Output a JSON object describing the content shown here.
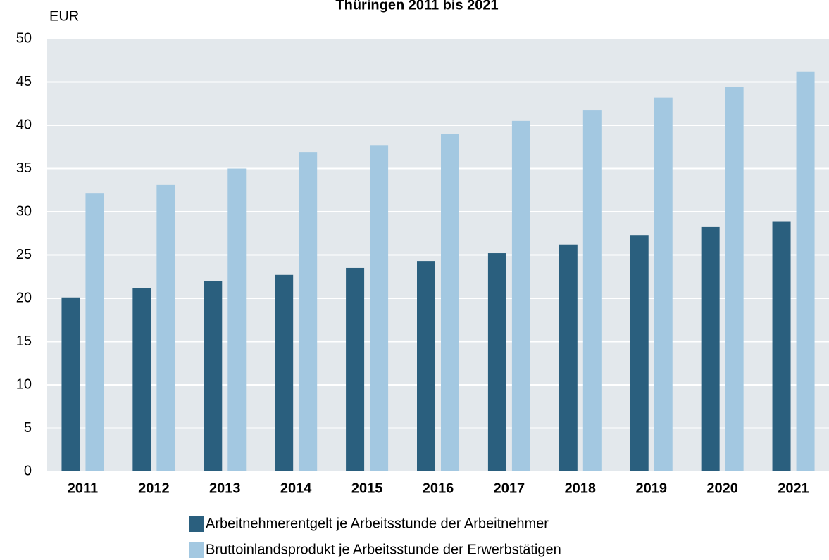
{
  "chart_data": {
    "type": "bar",
    "title": "Thüringen 2011 bis 2021",
    "y_label": "EUR",
    "categories": [
      "2011",
      "2012",
      "2013",
      "2014",
      "2015",
      "2016",
      "2017",
      "2018",
      "2019",
      "2020",
      "2021"
    ],
    "series": [
      {
        "name": "Arbeitnehmerentgelt je Arbeitsstunde der Arbeitnehmer",
        "color": "#2a5f7e",
        "values": [
          20.1,
          21.2,
          22.0,
          22.7,
          23.5,
          24.3,
          25.2,
          26.2,
          27.3,
          28.3,
          28.9
        ]
      },
      {
        "name": "Bruttoinlandsprodukt je Arbeitsstunde der Erwerbstätigen",
        "color": "#a3c8e1",
        "values": [
          32.1,
          33.1,
          35.0,
          36.9,
          37.7,
          39.0,
          40.5,
          41.7,
          43.2,
          44.4,
          46.2
        ]
      }
    ],
    "ylim": [
      0,
      50
    ],
    "yticks": [
      0,
      5,
      10,
      15,
      20,
      25,
      30,
      35,
      40,
      45,
      50
    ],
    "grid": true
  }
}
